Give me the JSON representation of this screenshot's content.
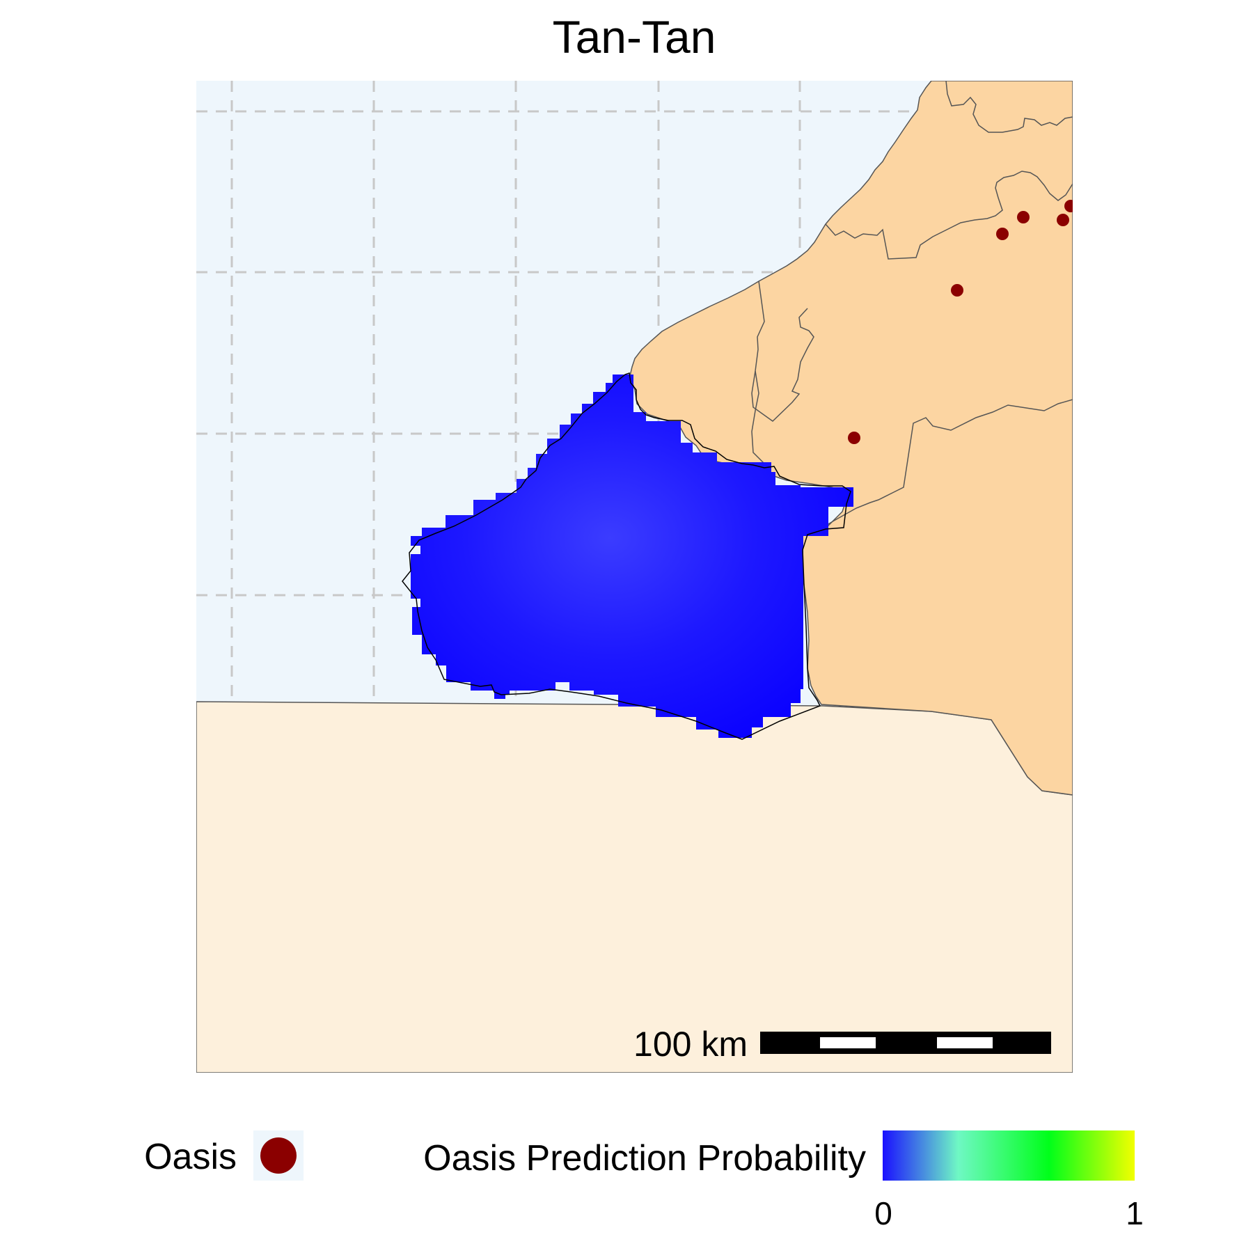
{
  "title": "Tan-Tan",
  "scale_bar": {
    "label": "100 km"
  },
  "legend": {
    "oasis_label": "Oasis",
    "probability_label": "Oasis Prediction Probability",
    "gradient_min": "0",
    "gradient_max": "1",
    "gradient_stops": [
      {
        "offset": 0.0,
        "color": "#1a10ff"
      },
      {
        "offset": 0.3,
        "color": "#6ff8c4"
      },
      {
        "offset": 0.66,
        "color": "#00ff1a"
      },
      {
        "offset": 1.0,
        "color": "#f2ff00"
      }
    ]
  },
  "colors": {
    "ocean": "#eef6fc",
    "morocco_land": "#fcd5a2",
    "southern_land": "#fdf0dc",
    "prediction": "#0a00ff",
    "oasis_point": "#8b0000",
    "grid": "#c8c8c8"
  }
}
